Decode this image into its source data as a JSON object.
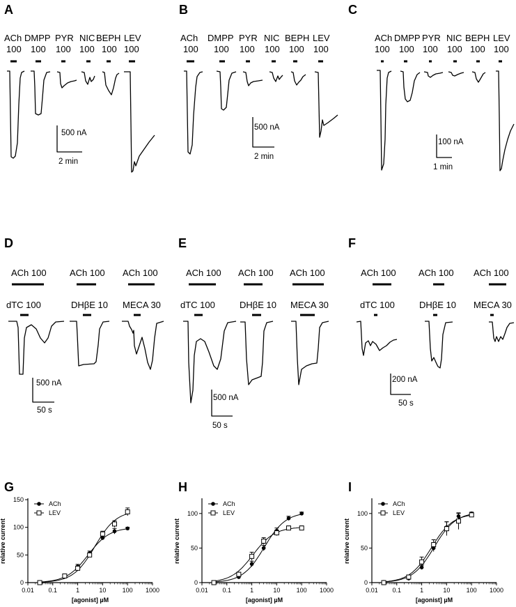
{
  "panels_top": [
    {
      "letter": "A",
      "drugs": [
        "ACh",
        "DMPP",
        "PYR",
        "NIC",
        "BEPH",
        "LEV"
      ],
      "conc": [
        "100",
        "100",
        "100",
        "100",
        "100",
        "100"
      ],
      "scale_y": "500 nA",
      "scale_x": "2 min"
    },
    {
      "letter": "B",
      "drugs": [
        "ACh",
        "DMPP",
        "PYR",
        "NIC",
        "BEPH",
        "LEV"
      ],
      "conc": [
        "100",
        "100",
        "100",
        "100",
        "100",
        "100"
      ],
      "scale_y": "500 nA",
      "scale_x": "2 min"
    },
    {
      "letter": "C",
      "drugs": [
        "ACh",
        "DMPP",
        "PYR",
        "NIC",
        "BEPH",
        "LEV"
      ],
      "conc": [
        "100",
        "100",
        "100",
        "100",
        "100",
        "100"
      ],
      "scale_y": "100 nA",
      "scale_x": "1 min"
    }
  ],
  "panels_mid": [
    {
      "letter": "D",
      "top_labels": [
        "ACh 100",
        "ACh 100",
        "ACh 100"
      ],
      "antag_labels": [
        "dTC 100",
        "DHβE 10",
        "MECA 30"
      ],
      "scale_y": "500 nA",
      "scale_x": "50 s"
    },
    {
      "letter": "E",
      "top_labels": [
        "ACh 100",
        "ACh 100",
        "ACh 100"
      ],
      "antag_labels": [
        "dTC 100",
        "DHβE 10",
        "MECA 30"
      ],
      "scale_y": "500 nA",
      "scale_x": "50 s"
    },
    {
      "letter": "F",
      "top_labels": [
        "ACh 100",
        "ACh 100",
        "ACh 100"
      ],
      "antag_labels": [
        "dTC 100",
        "DHβE 10",
        "MECA 30"
      ],
      "scale_y": "200 nA",
      "scale_x": "50 s"
    }
  ],
  "chart_data": [
    {
      "panel": "G",
      "type": "scatter",
      "xscale": "log",
      "xlim": [
        0.01,
        1000
      ],
      "ylim": [
        0,
        150
      ],
      "xticks": [
        "0.01",
        "0.1",
        "1",
        "10",
        "100",
        "1000"
      ],
      "yticks": [
        "0",
        "50",
        "100",
        "150"
      ],
      "xlabel": "[agonist] µM",
      "ylabel": "relative current",
      "legend": "top-left",
      "x": [
        0.03,
        0.3,
        1,
        3,
        10,
        30,
        100
      ],
      "series": [
        {
          "name": "ACh",
          "marker": "filled-circle",
          "values": [
            1,
            11,
            29,
            53,
            81,
            93,
            98
          ],
          "err": [
            2,
            3,
            4,
            4,
            4,
            5,
            2
          ]
        },
        {
          "name": "LEV",
          "marker": "open-square",
          "values": [
            0,
            12,
            26,
            50,
            88,
            106,
            128
          ],
          "err": [
            2,
            3,
            4,
            4,
            5,
            6,
            7
          ]
        }
      ]
    },
    {
      "panel": "H",
      "type": "scatter",
      "xscale": "log",
      "xlim": [
        0.01,
        1000
      ],
      "ylim": [
        0,
        120
      ],
      "xticks": [
        "0.01",
        "0.1",
        "1",
        "10",
        "100",
        "1000"
      ],
      "yticks": [
        "0",
        "50",
        "100"
      ],
      "xlabel": "[agonist] µM",
      "ylabel": "relative current",
      "legend": "top-left",
      "x": [
        0.03,
        0.3,
        1,
        3,
        10,
        30,
        100
      ],
      "series": [
        {
          "name": "ACh",
          "marker": "filled-circle",
          "values": [
            0,
            8,
            27,
            50,
            75,
            93,
            100
          ],
          "err": [
            1,
            2,
            4,
            4,
            4,
            3,
            2
          ]
        },
        {
          "name": "LEV",
          "marker": "open-square",
          "values": [
            0,
            12,
            38,
            60,
            72,
            79,
            79
          ],
          "err": [
            1,
            3,
            6,
            5,
            4,
            3,
            3
          ]
        }
      ]
    },
    {
      "panel": "I",
      "type": "scatter",
      "xscale": "log",
      "xlim": [
        0.01,
        1000
      ],
      "ylim": [
        0,
        120
      ],
      "xticks": [
        "0.01",
        "0.1",
        "1",
        "10",
        "100",
        "1000"
      ],
      "yticks": [
        "0",
        "50",
        "100"
      ],
      "xlabel": "[agonist] µM",
      "ylabel": "relative current",
      "legend": "top-left",
      "x": [
        0.03,
        0.3,
        1,
        3,
        10,
        30,
        100
      ],
      "series": [
        {
          "name": "ACh",
          "marker": "filled-circle",
          "values": [
            1,
            6,
            22,
            50,
            80,
            96,
            100
          ],
          "err": [
            1,
            2,
            3,
            5,
            8,
            4,
            2
          ]
        },
        {
          "name": "LEV",
          "marker": "open-square",
          "values": [
            0,
            8,
            30,
            55,
            78,
            89,
            98
          ],
          "err": [
            1,
            3,
            7,
            7,
            10,
            12,
            3
          ]
        }
      ]
    }
  ]
}
